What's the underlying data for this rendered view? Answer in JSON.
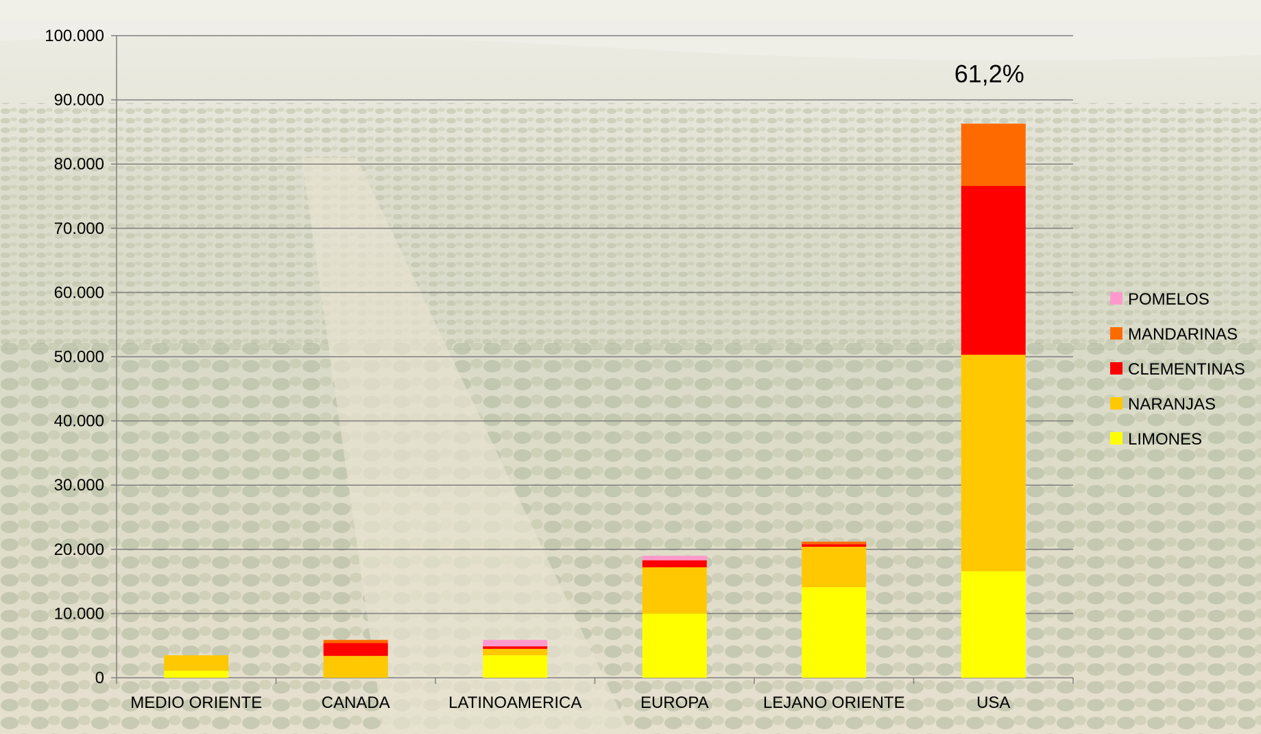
{
  "chart_data": {
    "type": "bar",
    "stacked": true,
    "categories": [
      "MEDIO ORIENTE",
      "CANADA",
      "LATINOAMERICA",
      "EUROPA",
      "LEJANO ORIENTE",
      "USA"
    ],
    "series": [
      {
        "name": "LIMONES",
        "color": "#ffff00",
        "values": [
          1100,
          0,
          3500,
          10000,
          14100,
          16600
        ]
      },
      {
        "name": "NARANJAS",
        "color": "#ffc800",
        "values": [
          2400,
          3400,
          1000,
          7200,
          6300,
          33700
        ]
      },
      {
        "name": "CLEMENTINAS",
        "color": "#ff0000",
        "values": [
          0,
          2000,
          400,
          1100,
          400,
          26300
        ]
      },
      {
        "name": "MANDARINAS",
        "color": "#ff6a00",
        "values": [
          0,
          500,
          0,
          0,
          400,
          9700
        ]
      },
      {
        "name": "POMELOS",
        "color": "#ff99cc",
        "values": [
          0,
          0,
          1000,
          700,
          0,
          0
        ]
      }
    ],
    "yticks": [
      "0",
      "10.000",
      "20.000",
      "30.000",
      "40.000",
      "50.000",
      "60.000",
      "70.000",
      "80.000",
      "90.000",
      "100.000"
    ],
    "ylim": [
      0,
      100000
    ],
    "grid": true,
    "legend_position": "right",
    "annotations": [
      {
        "category": "USA",
        "text": "61,2%"
      }
    ]
  }
}
